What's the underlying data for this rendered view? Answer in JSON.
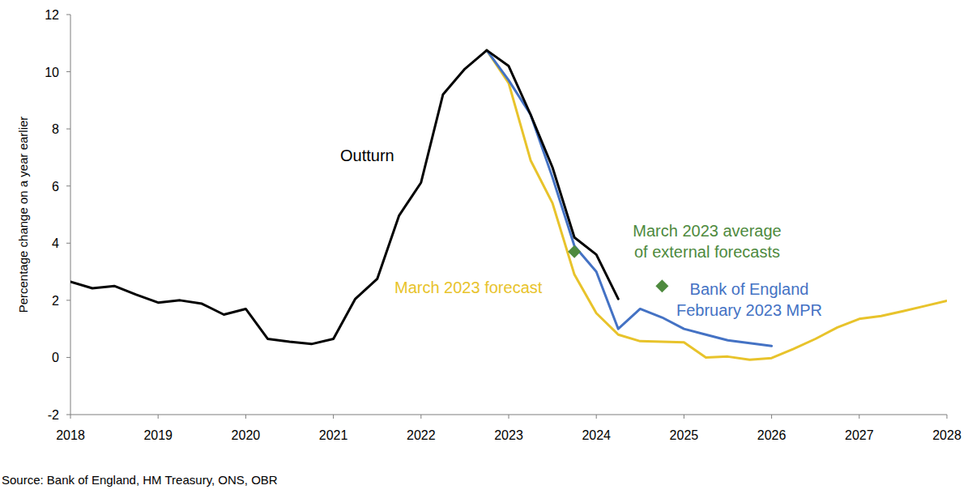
{
  "chart_data": {
    "type": "line",
    "y_label": "Percentage change on a year earlier",
    "source": "Source: Bank of England, HM Treasury, ONS, OBR",
    "x": [
      2018,
      2018.25,
      2018.5,
      2018.75,
      2019,
      2019.25,
      2019.5,
      2019.75,
      2020,
      2020.25,
      2020.5,
      2020.75,
      2021,
      2021.25,
      2021.5,
      2021.75,
      2022,
      2022.25,
      2022.5,
      2022.75,
      2023,
      2023.25,
      2023.5,
      2023.75,
      2024,
      2024.25,
      2024.5,
      2024.75,
      2025,
      2025.25,
      2025.5,
      2025.75,
      2026,
      2026.25,
      2026.5,
      2026.75,
      2027,
      2027.25,
      2027.5,
      2027.75,
      2028
    ],
    "xlim": [
      2018,
      2028
    ],
    "xticks": [
      2018,
      2019,
      2020,
      2021,
      2022,
      2023,
      2024,
      2025,
      2026,
      2027,
      2028
    ],
    "ylim": [
      -2,
      12
    ],
    "yticks": [
      -2,
      0,
      2,
      4,
      6,
      8,
      10,
      12
    ],
    "grid": false,
    "series": [
      {
        "name": "March 2023 forecast",
        "color": "#e8c32b",
        "type": "line",
        "values": [
          null,
          null,
          null,
          null,
          null,
          null,
          null,
          null,
          null,
          null,
          null,
          null,
          null,
          null,
          null,
          null,
          null,
          null,
          null,
          10.75,
          9.6,
          6.9,
          5.4,
          2.9,
          1.55,
          0.8,
          0.57,
          0.55,
          0.53,
          0.0,
          0.03,
          -0.08,
          -0.02,
          0.3,
          0.65,
          1.05,
          1.35,
          1.45,
          1.62,
          1.8,
          1.98
        ]
      },
      {
        "name": "Bank of England February 2023 MPR",
        "color": "#4472c4",
        "type": "line",
        "values": [
          null,
          null,
          null,
          null,
          null,
          null,
          null,
          null,
          null,
          null,
          null,
          null,
          null,
          null,
          null,
          null,
          null,
          null,
          null,
          10.75,
          9.7,
          8.5,
          6.3,
          3.9,
          3.0,
          1.0,
          1.7,
          1.4,
          1.0,
          0.8,
          0.6,
          0.5,
          0.4,
          null,
          null,
          null,
          null,
          null,
          null,
          null,
          null
        ]
      },
      {
        "name": "Outturn",
        "color": "#000000",
        "type": "line",
        "values": [
          2.65,
          2.42,
          2.5,
          2.2,
          1.92,
          2.0,
          1.88,
          1.5,
          1.7,
          0.65,
          0.55,
          0.47,
          0.65,
          2.05,
          2.75,
          4.97,
          6.12,
          9.2,
          10.1,
          10.75,
          10.2,
          8.5,
          6.65,
          4.2,
          3.6,
          2.05,
          null,
          null,
          null,
          null,
          null,
          null,
          null,
          null,
          null,
          null,
          null,
          null,
          null,
          null,
          null
        ]
      },
      {
        "name": "March 2023 average of external forecasts",
        "color": "#4e8a3e",
        "type": "scatter",
        "marker": "diamond",
        "values": [
          null,
          null,
          null,
          null,
          null,
          null,
          null,
          null,
          null,
          null,
          null,
          null,
          null,
          null,
          null,
          null,
          null,
          null,
          null,
          null,
          null,
          null,
          null,
          3.7,
          null,
          null,
          null,
          2.5,
          null,
          null,
          null,
          null,
          null,
          null,
          null,
          null,
          null,
          null,
          null,
          null,
          null
        ]
      }
    ]
  }
}
